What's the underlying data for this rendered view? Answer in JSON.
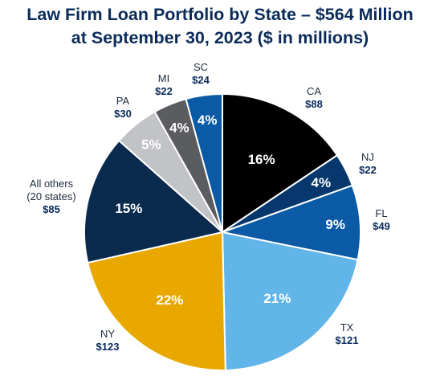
{
  "chart_data": {
    "type": "pie",
    "title_line1": "Law Firm Loan Portfolio by State – $564 Million",
    "title_line2": "at September 30, 2023 ($ in millions)",
    "slices": [
      {
        "name": "CA",
        "value": 88,
        "value_label": "$88",
        "percent_label": "16%",
        "color": "#000000"
      },
      {
        "name": "NJ",
        "value": 22,
        "value_label": "$22",
        "percent_label": "4%",
        "color": "#06386e"
      },
      {
        "name": "FL",
        "value": 49,
        "value_label": "$49",
        "percent_label": "9%",
        "color": "#0b5aa6"
      },
      {
        "name": "TX",
        "value": 121,
        "value_label": "$121",
        "percent_label": "21%",
        "color": "#62b5e8"
      },
      {
        "name": "NY",
        "value": 123,
        "value_label": "$123",
        "percent_label": "22%",
        "color": "#e8a800"
      },
      {
        "name": "All others",
        "name_line2": "(20 states)",
        "value": 85,
        "value_label": "$85",
        "percent_label": "15%",
        "color": "#0a2a4e"
      },
      {
        "name": "PA",
        "value": 30,
        "value_label": "$30",
        "percent_label": "5%",
        "color": "#c1c3c7"
      },
      {
        "name": "MI",
        "value": 22,
        "value_label": "$22",
        "percent_label": "4%",
        "color": "#5a5c60"
      },
      {
        "name": "SC",
        "value": 24,
        "value_label": "$24",
        "percent_label": "4%",
        "color": "#0b5aa6"
      }
    ]
  }
}
